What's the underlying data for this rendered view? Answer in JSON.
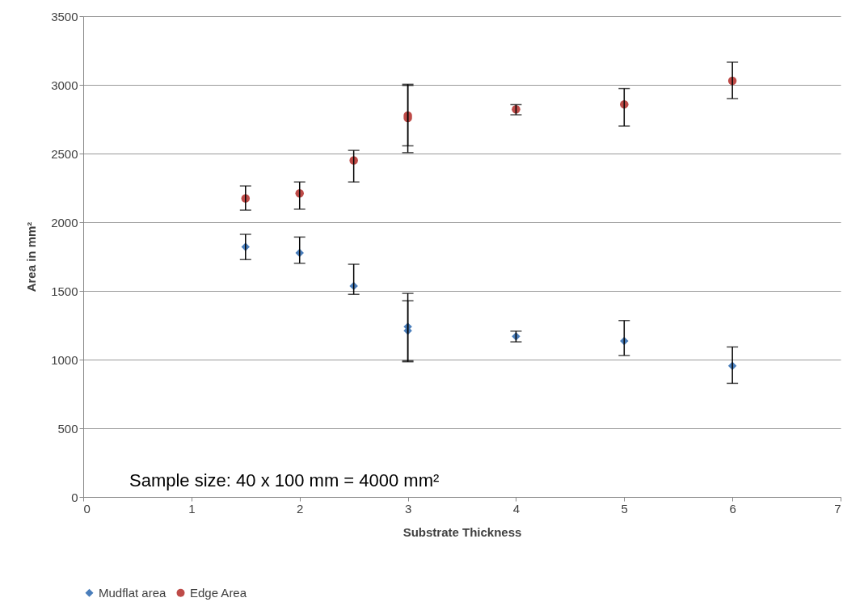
{
  "chart_data": {
    "type": "scatter",
    "xlabel": "Substrate Thickness",
    "ylabel": "Area in mm²",
    "annotations": [
      "Sample size: 40 x 100 mm = 4000 mm²"
    ],
    "xlim": [
      0,
      7
    ],
    "xticks": [
      0,
      1,
      2,
      3,
      4,
      5,
      6,
      7
    ],
    "ylim": [
      0,
      3500
    ],
    "yticks": [
      0,
      500,
      1000,
      1500,
      2000,
      2500,
      3000,
      3500
    ],
    "grid": "y",
    "legend": "bottom",
    "series": [
      {
        "name": "Mudflat area",
        "color": "#4a7ebb",
        "marker": "diamond",
        "x": [
          1.5,
          2,
          2.5,
          3,
          3,
          4,
          5,
          6
        ],
        "values": [
          1820,
          1777,
          1536,
          1239,
          1210,
          1169,
          1135,
          955
        ],
        "errors": [
          [
            1728,
            1912
          ],
          [
            1701,
            1892
          ],
          [
            1475,
            1694
          ],
          [
            991,
            1482
          ],
          [
            984,
            1428
          ],
          [
            1129,
            1207
          ],
          [
            1030,
            1284
          ],
          [
            827,
            1092
          ]
        ]
      },
      {
        "name": "Edge Area",
        "color": "#be4b48",
        "marker": "circle",
        "x": [
          1.5,
          2,
          2.5,
          3,
          3,
          4,
          5,
          6
        ],
        "values": [
          2174,
          2210,
          2450,
          2777,
          2759,
          2822,
          2858,
          3029
        ],
        "errors": [
          [
            2088,
            2264
          ],
          [
            2095,
            2293
          ],
          [
            2293,
            2523
          ],
          [
            2556,
            3004
          ],
          [
            2507,
            2996
          ],
          [
            2782,
            2856
          ],
          [
            2700,
            2973
          ],
          [
            2900,
            3165
          ]
        ]
      }
    ]
  }
}
